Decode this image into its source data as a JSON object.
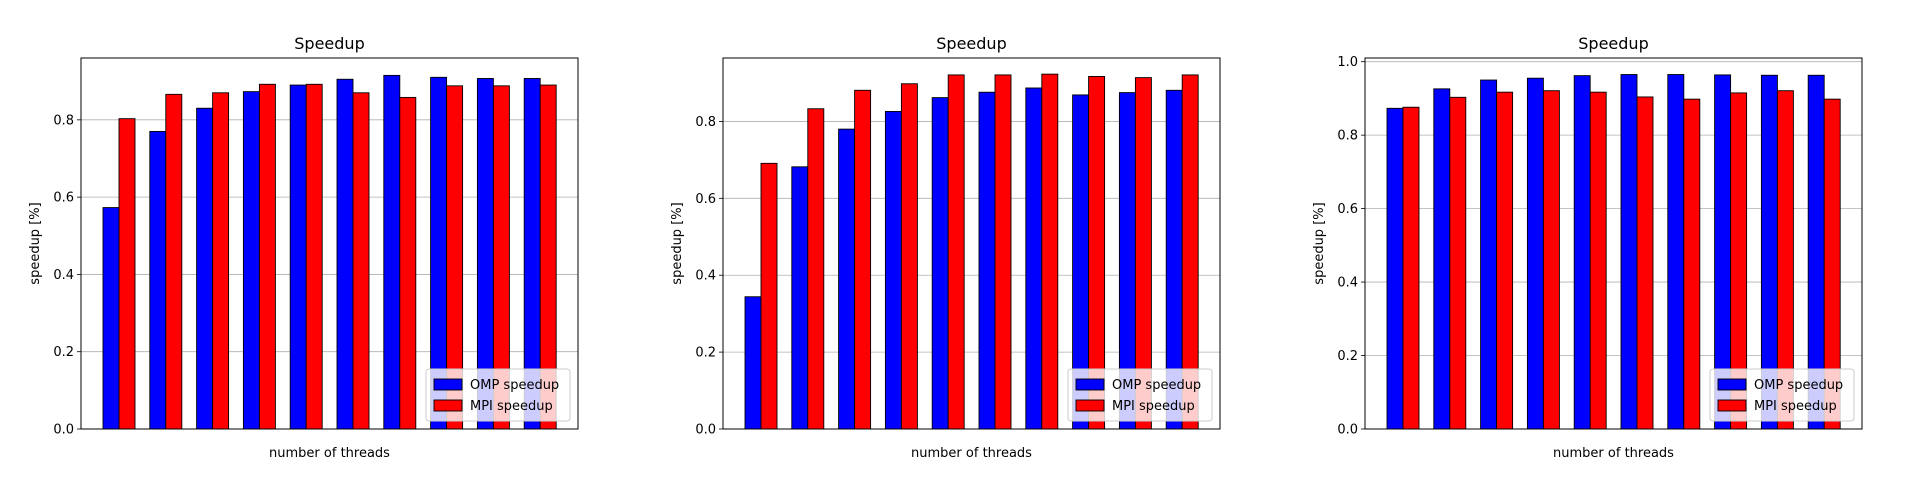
{
  "chart_data": [
    {
      "type": "bar",
      "title": "Speedup",
      "xlabel": "number of threads",
      "ylabel": "speedup [%]",
      "ylim": [
        0,
        0.96
      ],
      "yticks": [
        "0.0",
        "0.2",
        "0.4",
        "0.6",
        "0.8"
      ],
      "grid": "y",
      "legend_position": "lower-right",
      "series": [
        {
          "name": "OMP speedup",
          "color": "#0000ff",
          "values": [
            0.573,
            0.77,
            0.83,
            0.873,
            0.89,
            0.905,
            0.915,
            0.91,
            0.907,
            0.907
          ]
        },
        {
          "name": "MPI speedup",
          "color": "#ff0000",
          "values": [
            0.803,
            0.866,
            0.87,
            0.892,
            0.892,
            0.87,
            0.858,
            0.888,
            0.888,
            0.89
          ]
        }
      ]
    },
    {
      "type": "bar",
      "title": "Speedup",
      "xlabel": "number of threads",
      "ylabel": "speedup [%]",
      "ylim": [
        0,
        0.965
      ],
      "yticks": [
        "0.0",
        "0.2",
        "0.4",
        "0.6",
        "0.8"
      ],
      "grid": "y",
      "legend_position": "lower-right",
      "series": [
        {
          "name": "OMP speedup",
          "color": "#0000ff",
          "values": [
            0.344,
            0.682,
            0.78,
            0.826,
            0.862,
            0.876,
            0.887,
            0.869,
            0.875,
            0.881
          ]
        },
        {
          "name": "MPI speedup",
          "color": "#ff0000",
          "values": [
            0.691,
            0.833,
            0.881,
            0.898,
            0.921,
            0.921,
            0.923,
            0.917,
            0.914,
            0.921
          ]
        }
      ]
    },
    {
      "type": "bar",
      "title": "Speedup",
      "xlabel": "number of threads",
      "ylabel": "speedup [%]",
      "ylim": [
        0,
        1.01
      ],
      "yticks": [
        "0.0",
        "0.2",
        "0.4",
        "0.6",
        "0.8",
        "1.0"
      ],
      "grid": "y",
      "legend_position": "lower-right",
      "series": [
        {
          "name": "OMP speedup",
          "color": "#0000ff",
          "values": [
            0.873,
            0.926,
            0.95,
            0.955,
            0.962,
            0.965,
            0.965,
            0.964,
            0.963,
            0.963
          ]
        },
        {
          "name": "MPI speedup",
          "color": "#ff0000",
          "values": [
            0.876,
            0.903,
            0.917,
            0.921,
            0.917,
            0.904,
            0.898,
            0.915,
            0.921,
            0.898
          ]
        }
      ]
    }
  ]
}
